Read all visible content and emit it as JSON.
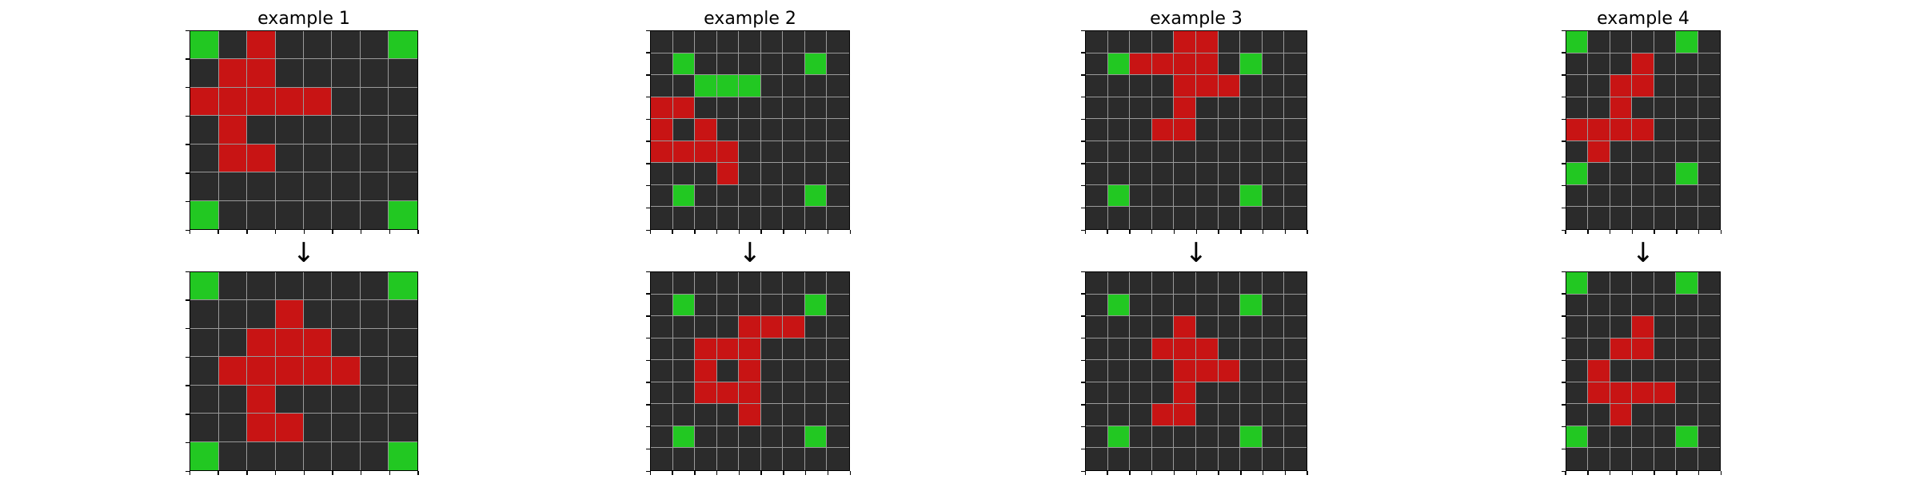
{
  "palette": {
    "0": "#2b2b2b",
    "1": "#c81414",
    "2": "#22c822"
  },
  "arrow_glyph": "↓",
  "examples": [
    {
      "title": "example 1",
      "input": [
        "20100002",
        "01100000",
        "11111000",
        "01000000",
        "01100000",
        "00000000",
        "20000002"
      ],
      "output": [
        "20000002",
        "00010000",
        "00111000",
        "01111100",
        "00100000",
        "00110000",
        "20000002"
      ]
    },
    {
      "title": "example 2",
      "input": [
        "000000000",
        "020000020",
        "002220000",
        "110000000",
        "101000000",
        "111100000",
        "000100000",
        "020000020",
        "000000000"
      ],
      "output": [
        "000000000",
        "020000020",
        "000011100",
        "001110000",
        "001010000",
        "001110000",
        "000010000",
        "020000020",
        "000000000"
      ]
    },
    {
      "title": "example 3",
      "input": [
        "0000110000",
        "0211110200",
        "0000111000",
        "0000100000",
        "0001100000",
        "0000000000",
        "0000000000",
        "0200000200",
        "0000000000"
      ],
      "output": [
        "0000000000",
        "0200000200",
        "0000100000",
        "0001110000",
        "0000111000",
        "0000100000",
        "0001100000",
        "0200000200",
        "0000000000"
      ]
    },
    {
      "title": "example 4",
      "input": [
        "2000020",
        "0001000",
        "0011000",
        "0010000",
        "1111000",
        "0100000",
        "2000020",
        "0000000",
        "0000000"
      ],
      "output": [
        "2000020",
        "0000000",
        "0001000",
        "0011000",
        "0100000",
        "0111100",
        "0010000",
        "2000020",
        "0000000"
      ]
    }
  ]
}
